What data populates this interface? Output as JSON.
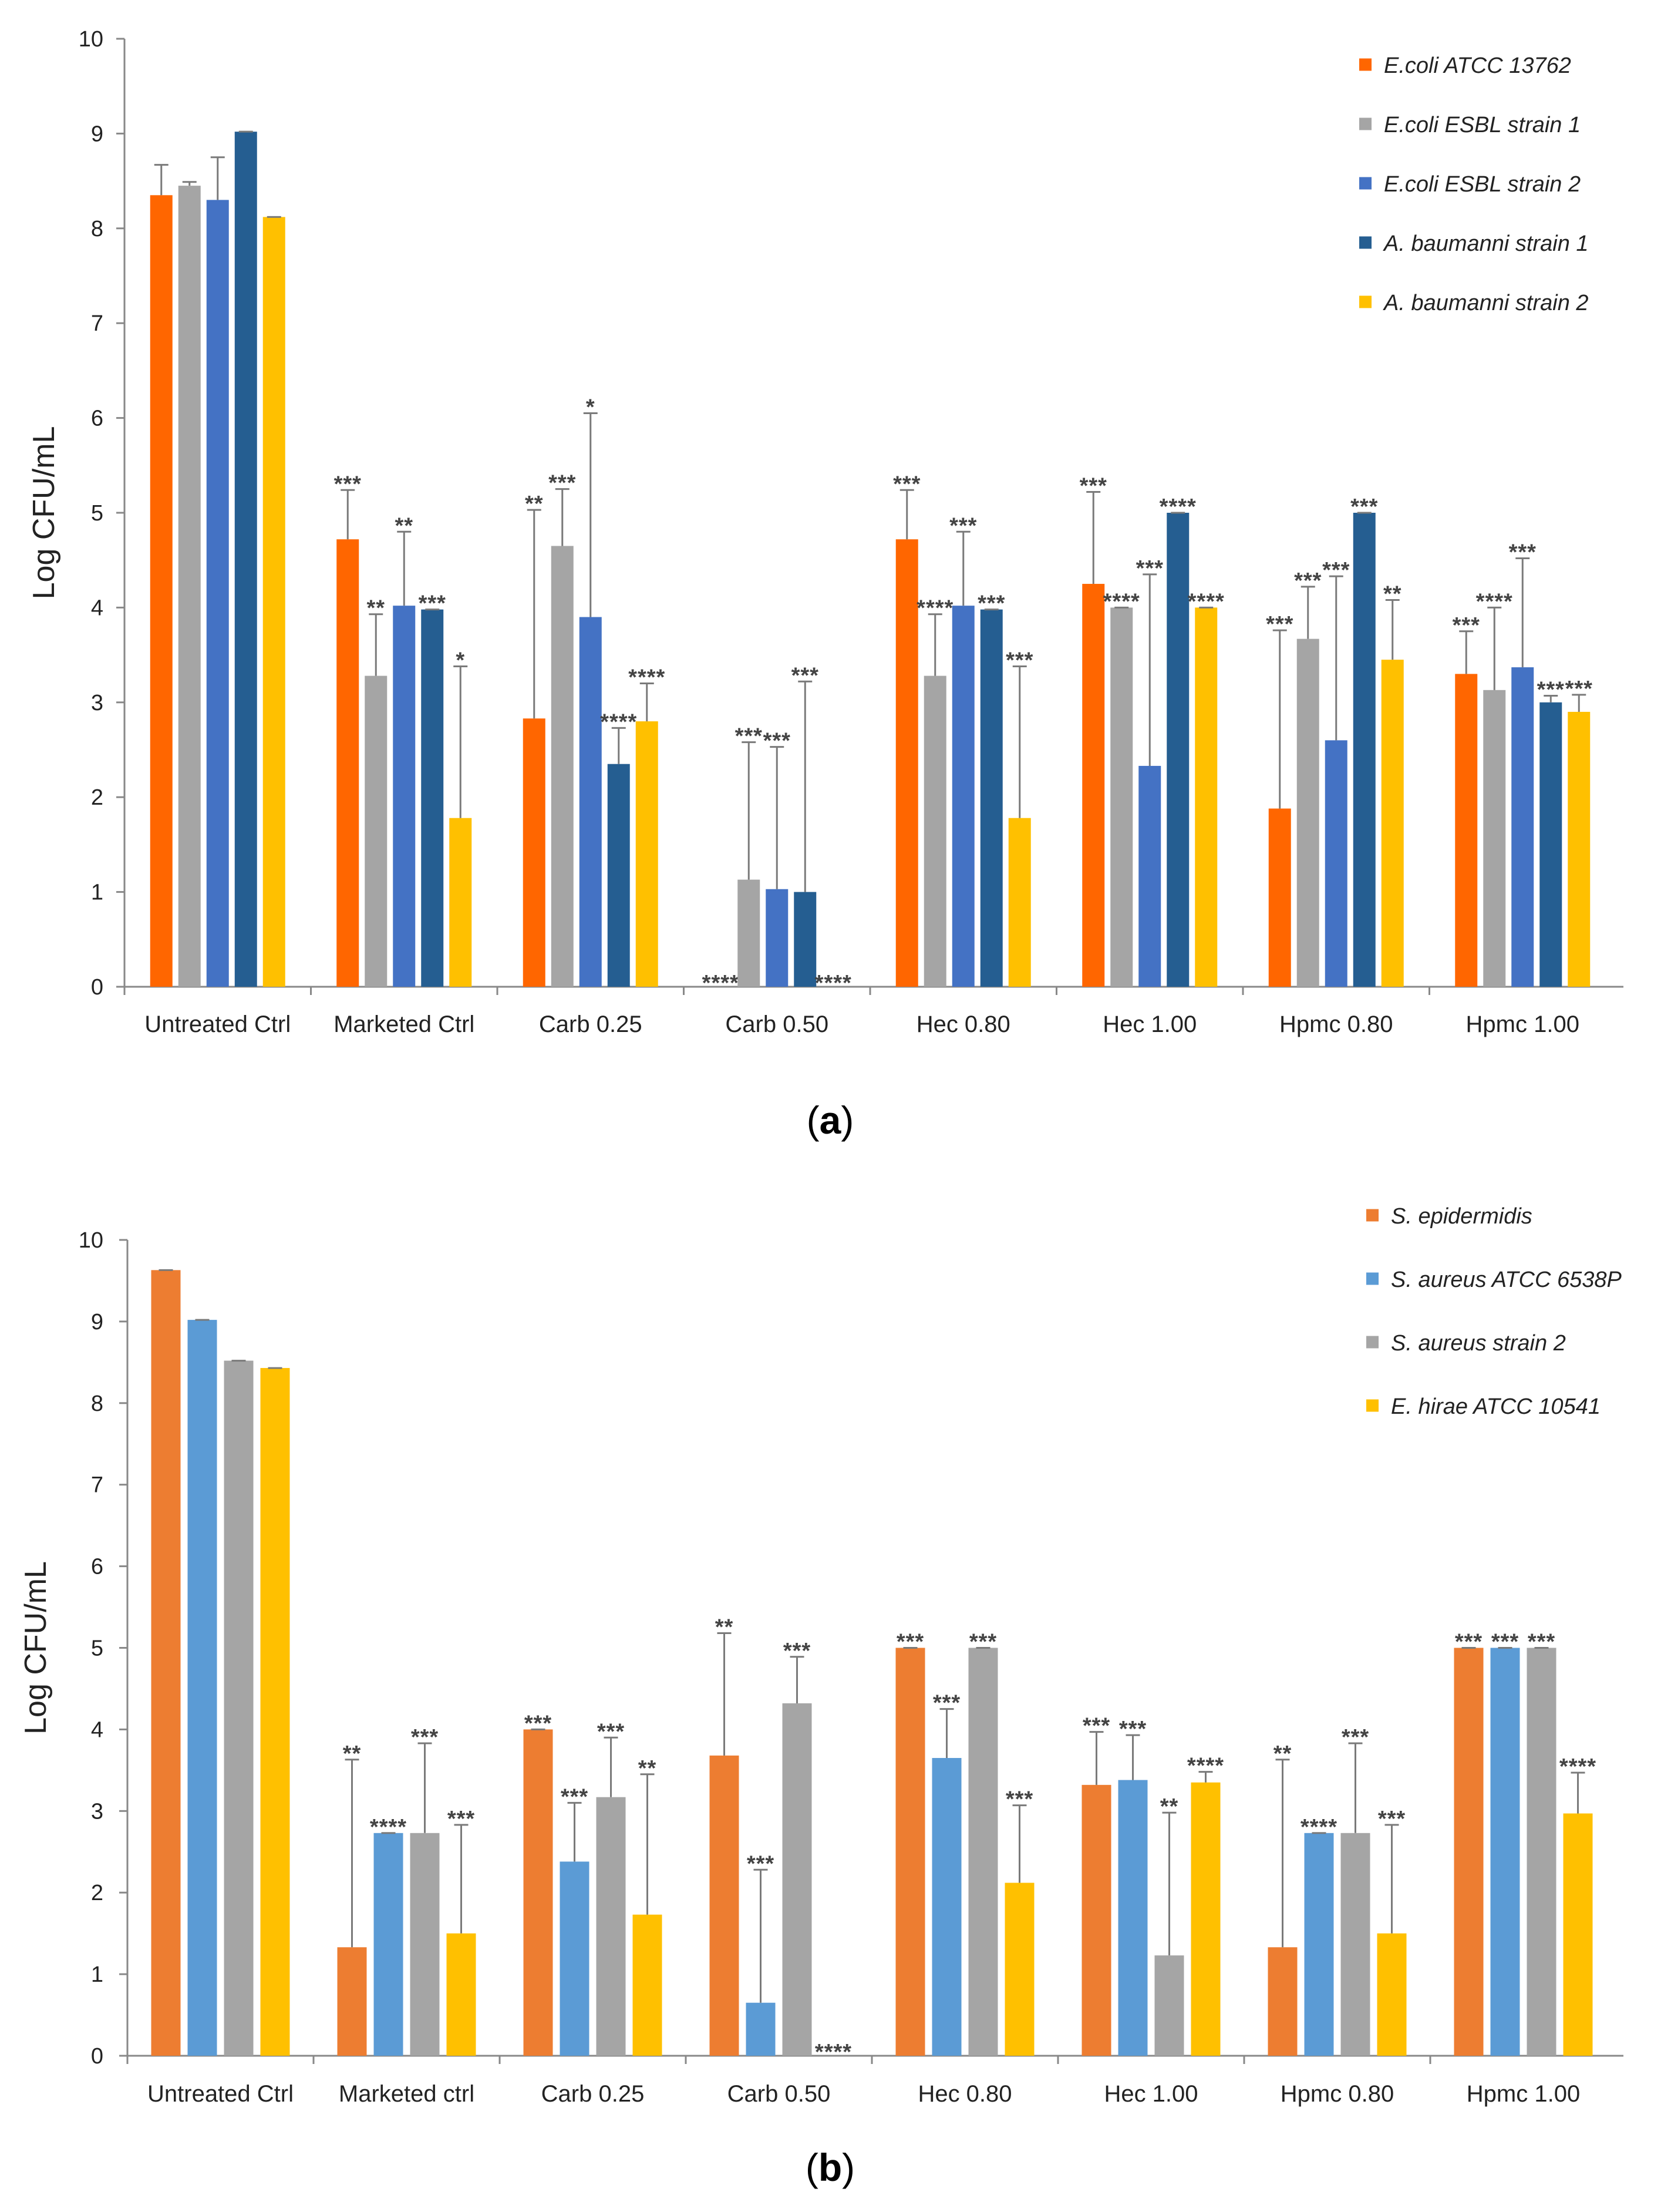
{
  "chart_data": [
    {
      "type": "bar",
      "panel_label": "a",
      "ylabel": "Log CFU/mL",
      "ylim": [
        0,
        10
      ],
      "yticks": [
        0,
        1,
        2,
        3,
        4,
        5,
        6,
        7,
        8,
        9,
        10
      ],
      "grid": false,
      "legend_position": "top-right",
      "categories": [
        "Untreated Ctrl",
        "Marketed Ctrl",
        "Carb 0.25",
        "Carb 0.50",
        "Hec 0.80",
        "Hec 1.00",
        "Hpmc 0.80",
        "Hpmc 1.00"
      ],
      "series": [
        {
          "name": "E.coli ATCC 13762",
          "color": "#FF6600",
          "values": [
            8.35,
            4.72,
            2.83,
            0,
            4.72,
            4.25,
            1.88,
            3.3
          ],
          "errors": [
            0.32,
            0.52,
            2.2,
            0,
            0.52,
            0.97,
            1.88,
            0.45
          ],
          "labels": [
            "",
            "***",
            "**",
            "****",
            "***",
            "***",
            "***",
            "***"
          ]
        },
        {
          "name": "E.coli ESBL strain 1",
          "color": "#A5A5A5",
          "values": [
            8.45,
            3.28,
            4.65,
            1.13,
            3.28,
            4.0,
            3.67,
            3.13
          ],
          "errors": [
            0.04,
            0.65,
            0.6,
            1.45,
            0.65,
            0,
            0.55,
            0.87
          ],
          "labels": [
            "",
            "**",
            "***",
            "***",
            "****",
            "****",
            "***",
            "****"
          ]
        },
        {
          "name": "E.coli ESBL strain 2",
          "color": "#4472C4",
          "values": [
            8.3,
            4.02,
            3.9,
            1.03,
            4.02,
            2.33,
            2.6,
            3.37
          ],
          "errors": [
            0.45,
            0.78,
            2.15,
            1.5,
            0.78,
            2.02,
            1.73,
            1.15
          ],
          "labels": [
            "",
            "**",
            "*",
            "***",
            "***",
            "***",
            "***",
            "***"
          ]
        },
        {
          "name": "A. baumanni strain 1",
          "color": "#255E91",
          "values": [
            9.02,
            3.98,
            2.35,
            1.0,
            3.98,
            5.0,
            5.0,
            3.0
          ],
          "errors": [
            0,
            0,
            0.38,
            2.22,
            0,
            0,
            0,
            0.07
          ],
          "labels": [
            "",
            "***",
            "****",
            "***",
            "***",
            "****",
            "***",
            "***"
          ]
        },
        {
          "name": "A. baumanni strain 2",
          "color": "#FFC000",
          "values": [
            8.12,
            1.78,
            2.8,
            0,
            1.78,
            4.0,
            3.45,
            2.9
          ],
          "errors": [
            0,
            1.6,
            0.4,
            0,
            1.6,
            0,
            0.63,
            0.18
          ],
          "labels": [
            "",
            "*",
            "****",
            "****",
            "***",
            "****",
            "**",
            "***"
          ]
        }
      ]
    },
    {
      "type": "bar",
      "panel_label": "b",
      "ylabel": "Log CFU/mL",
      "ylim": [
        0,
        10
      ],
      "yticks": [
        0,
        1,
        2,
        3,
        4,
        5,
        6,
        7,
        8,
        9,
        10
      ],
      "grid": false,
      "legend_position": "top-right",
      "categories": [
        "Untreated Ctrl",
        "Marketed ctrl",
        "Carb 0.25",
        "Carb 0.50",
        "Hec 0.80",
        "Hec 1.00",
        "Hpmc 0.80",
        "Hpmc 1.00"
      ],
      "series": [
        {
          "name": "S. epidermidis",
          "color": "#ED7D31",
          "values": [
            9.63,
            1.33,
            4.0,
            3.68,
            5.0,
            3.32,
            1.33,
            5.0
          ],
          "errors": [
            0,
            2.3,
            0,
            1.5,
            0,
            0.65,
            2.3,
            0
          ],
          "labels": [
            "",
            "**",
            "***",
            "**",
            "***",
            "***",
            "**",
            "***"
          ]
        },
        {
          "name": "S. aureus ATCC 6538P",
          "color": "#5B9BD5",
          "values": [
            9.02,
            2.73,
            2.38,
            0.65,
            3.65,
            3.38,
            2.73,
            5.0
          ],
          "errors": [
            0,
            0,
            0.72,
            1.63,
            0.6,
            0.55,
            0,
            0
          ],
          "labels": [
            "",
            "****",
            "***",
            "***",
            "***",
            "***",
            "****",
            "***"
          ]
        },
        {
          "name": "S. aureus strain 2",
          "color": "#A5A5A5",
          "values": [
            8.52,
            2.73,
            3.17,
            4.32,
            5.0,
            1.23,
            2.73,
            5.0
          ],
          "errors": [
            0,
            1.1,
            0.73,
            0.57,
            0,
            1.75,
            1.1,
            0
          ],
          "labels": [
            "",
            "***",
            "***",
            "***",
            "***",
            "**",
            "***",
            "***"
          ]
        },
        {
          "name": "E. hirae ATCC 10541",
          "color": "#FFC000",
          "values": [
            8.43,
            1.5,
            1.73,
            0,
            2.12,
            3.35,
            1.5,
            2.97
          ],
          "errors": [
            0,
            1.33,
            1.72,
            0,
            0.95,
            0.13,
            1.33,
            0.5
          ],
          "labels": [
            "",
            "***",
            "**",
            "****",
            "***",
            "****",
            "***",
            "****"
          ]
        }
      ]
    }
  ]
}
